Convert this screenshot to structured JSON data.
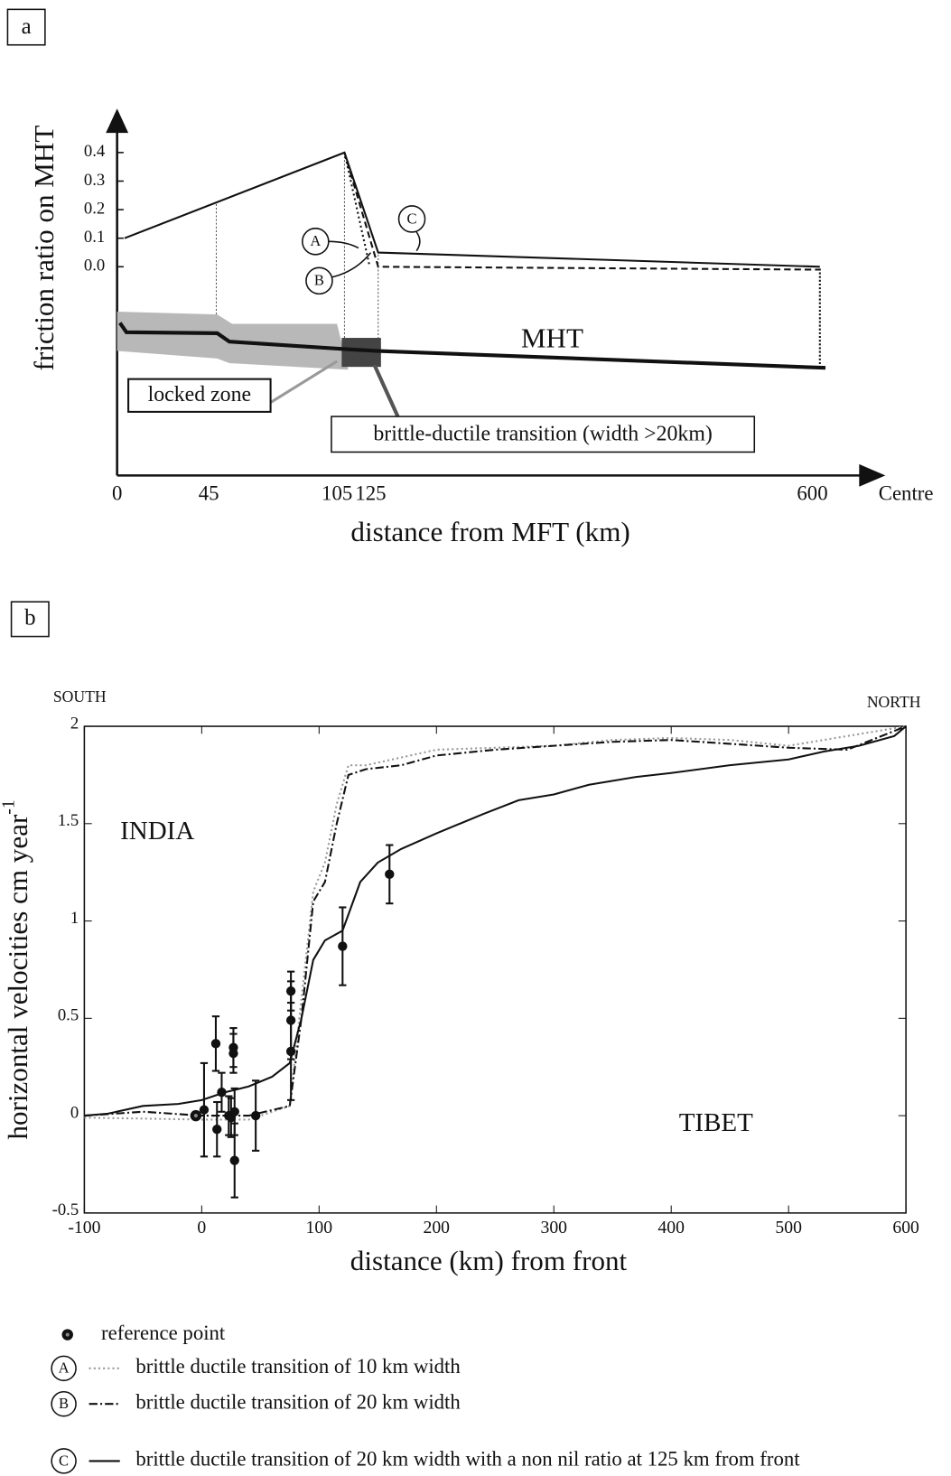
{
  "chart_data": [
    {
      "type": "line",
      "panel": "a",
      "ylabel": "friction ratio on MHT",
      "xlabel": "distance from MFT (km)",
      "xaxis_end_label": "Centre",
      "xticks": [
        0,
        45,
        105,
        125,
        600
      ],
      "ylim": [
        0,
        0.4
      ],
      "yticks": [
        {
          "value": 0,
          "label": "0.0"
        },
        0.1,
        0.2,
        0.3,
        0.4
      ],
      "series": [
        {
          "name": "A",
          "style": "dotted",
          "color": "#111111",
          "x": [
            105,
            120
          ],
          "values": [
            0.4,
            0.0
          ]
        },
        {
          "name": "B",
          "style": "dashed",
          "color": "#111111",
          "x": [
            105,
            125,
            600
          ],
          "values": [
            0.4,
            0.0,
            -0.01
          ]
        },
        {
          "name": "C",
          "style": "solid",
          "color": "#111111",
          "x": [
            0,
            105,
            125,
            600
          ],
          "values": [
            0.1,
            0.4,
            0.05,
            0.0
          ]
        }
      ],
      "annotations": [
        "MHT",
        "locked zone",
        "brittle-ductile transition (width >20km)"
      ]
    },
    {
      "type": "line",
      "panel": "b",
      "ylabel": "horizontal velocities cm year",
      "ylabel_exponent": "-1",
      "xlabel": "distance (km) from front",
      "annotations": [
        "SOUTH",
        "NORTH",
        "INDIA",
        "TIBET"
      ],
      "xlim": [
        -100,
        600
      ],
      "xticks": [
        -100,
        0,
        100,
        200,
        300,
        400,
        500,
        600
      ],
      "ylim": [
        -0.5,
        2
      ],
      "yticks": [
        -0.5,
        0,
        0.5,
        1,
        1.5,
        2
      ],
      "series": [
        {
          "name": "brittle ductile transition of 10 km width",
          "style": "dotted",
          "color": "#999999",
          "x": [
            -100,
            0,
            40,
            75,
            85,
            95,
            105,
            115,
            125,
            140,
            200,
            300,
            350,
            400,
            450,
            500,
            600
          ],
          "values": [
            -0.01,
            -0.02,
            -0.02,
            0.05,
            0.6,
            1.15,
            1.3,
            1.6,
            1.8,
            1.8,
            1.88,
            1.9,
            1.93,
            1.94,
            1.93,
            1.9,
            2.0
          ]
        },
        {
          "name": "brittle ductile transition of 20 km width",
          "style": "dashdot",
          "color": "#111111",
          "x": [
            -100,
            -50,
            0,
            40,
            75,
            85,
            95,
            105,
            115,
            125,
            140,
            170,
            200,
            250,
            300,
            350,
            400,
            450,
            500,
            550,
            600
          ],
          "values": [
            0,
            0.02,
            0.0,
            0.0,
            0.05,
            0.5,
            1.1,
            1.2,
            1.5,
            1.75,
            1.78,
            1.8,
            1.85,
            1.88,
            1.9,
            1.92,
            1.93,
            1.91,
            1.89,
            1.88,
            2.0
          ]
        },
        {
          "name": "brittle ductile transition of 20 km width with a non nil ratio at 125 km from front",
          "style": "solid",
          "color": "#111111",
          "x": [
            -100,
            -80,
            -50,
            -20,
            0,
            20,
            40,
            60,
            75,
            85,
            95,
            105,
            120,
            135,
            150,
            170,
            200,
            240,
            270,
            300,
            330,
            370,
            400,
            450,
            500,
            530,
            560,
            590,
            600
          ],
          "values": [
            0,
            0.01,
            0.05,
            0.06,
            0.08,
            0.12,
            0.15,
            0.2,
            0.27,
            0.5,
            0.8,
            0.9,
            0.95,
            1.2,
            1.3,
            1.37,
            1.45,
            1.55,
            1.62,
            1.65,
            1.7,
            1.74,
            1.76,
            1.8,
            1.83,
            1.87,
            1.9,
            1.95,
            2.0
          ]
        }
      ],
      "points": {
        "x": [
          2,
          12,
          13,
          17,
          23,
          25,
          27,
          27,
          28,
          28,
          46,
          76,
          76,
          76,
          120,
          160
        ],
        "values": [
          0.03,
          0.37,
          -0.07,
          0.12,
          0.0,
          -0.01,
          0.35,
          0.32,
          -0.23,
          0.02,
          0.0,
          0.64,
          0.49,
          0.33,
          0.87,
          1.24
        ],
        "errors": [
          0.24,
          0.14,
          0.14,
          0.1,
          0.1,
          0.1,
          0.1,
          0.1,
          0.19,
          0.12,
          0.18,
          0.1,
          0.2,
          0.25,
          0.2,
          0.15
        ]
      },
      "reference_point": {
        "name": "reference point",
        "x": -5,
        "value": 0
      }
    }
  ]
}
